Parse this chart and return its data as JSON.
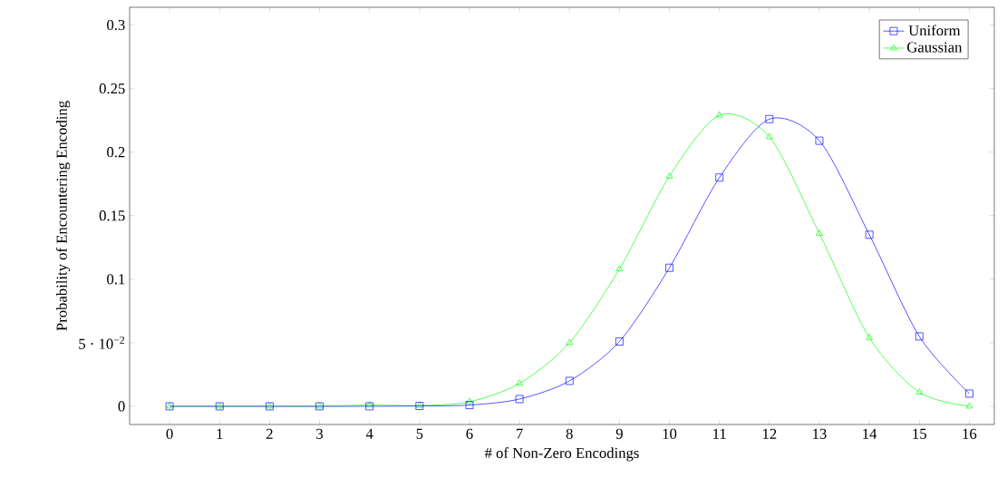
{
  "chart_data": {
    "type": "line",
    "xlabel": "# of Non-Zero Encodings",
    "ylabel": "Probability of Encountering Encoding",
    "x": [
      0,
      1,
      2,
      3,
      4,
      5,
      6,
      7,
      8,
      9,
      10,
      11,
      12,
      13,
      14,
      15,
      16
    ],
    "series": [
      {
        "name": "Uniform",
        "color": "#0000ff",
        "marker": "square",
        "values": [
          0,
          0,
          0,
          0,
          0,
          0.0003,
          0.001,
          0.0057,
          0.02,
          0.051,
          0.109,
          0.18,
          0.226,
          0.209,
          0.135,
          0.055,
          0.01
        ]
      },
      {
        "name": "Gaussian",
        "color": "#00ff00",
        "marker": "triangle",
        "values": [
          0,
          0,
          0,
          0,
          0.001,
          0.0005,
          0.0036,
          0.018,
          0.05,
          0.108,
          0.181,
          0.229,
          0.212,
          0.136,
          0.054,
          0.011,
          0
        ]
      }
    ],
    "xlim": [
      -0.8,
      16.5
    ],
    "ylim": [
      -0.0143,
      0.314
    ],
    "xticks": [
      0,
      1,
      2,
      3,
      4,
      5,
      6,
      7,
      8,
      9,
      10,
      11,
      12,
      13,
      14,
      15,
      16
    ],
    "yticks": [
      0,
      {
        "value": 0.05,
        "label": "5 · 10$^{−2}$"
      },
      0.1,
      0.15,
      0.2,
      0.25,
      0.3
    ],
    "legend": "top right"
  }
}
